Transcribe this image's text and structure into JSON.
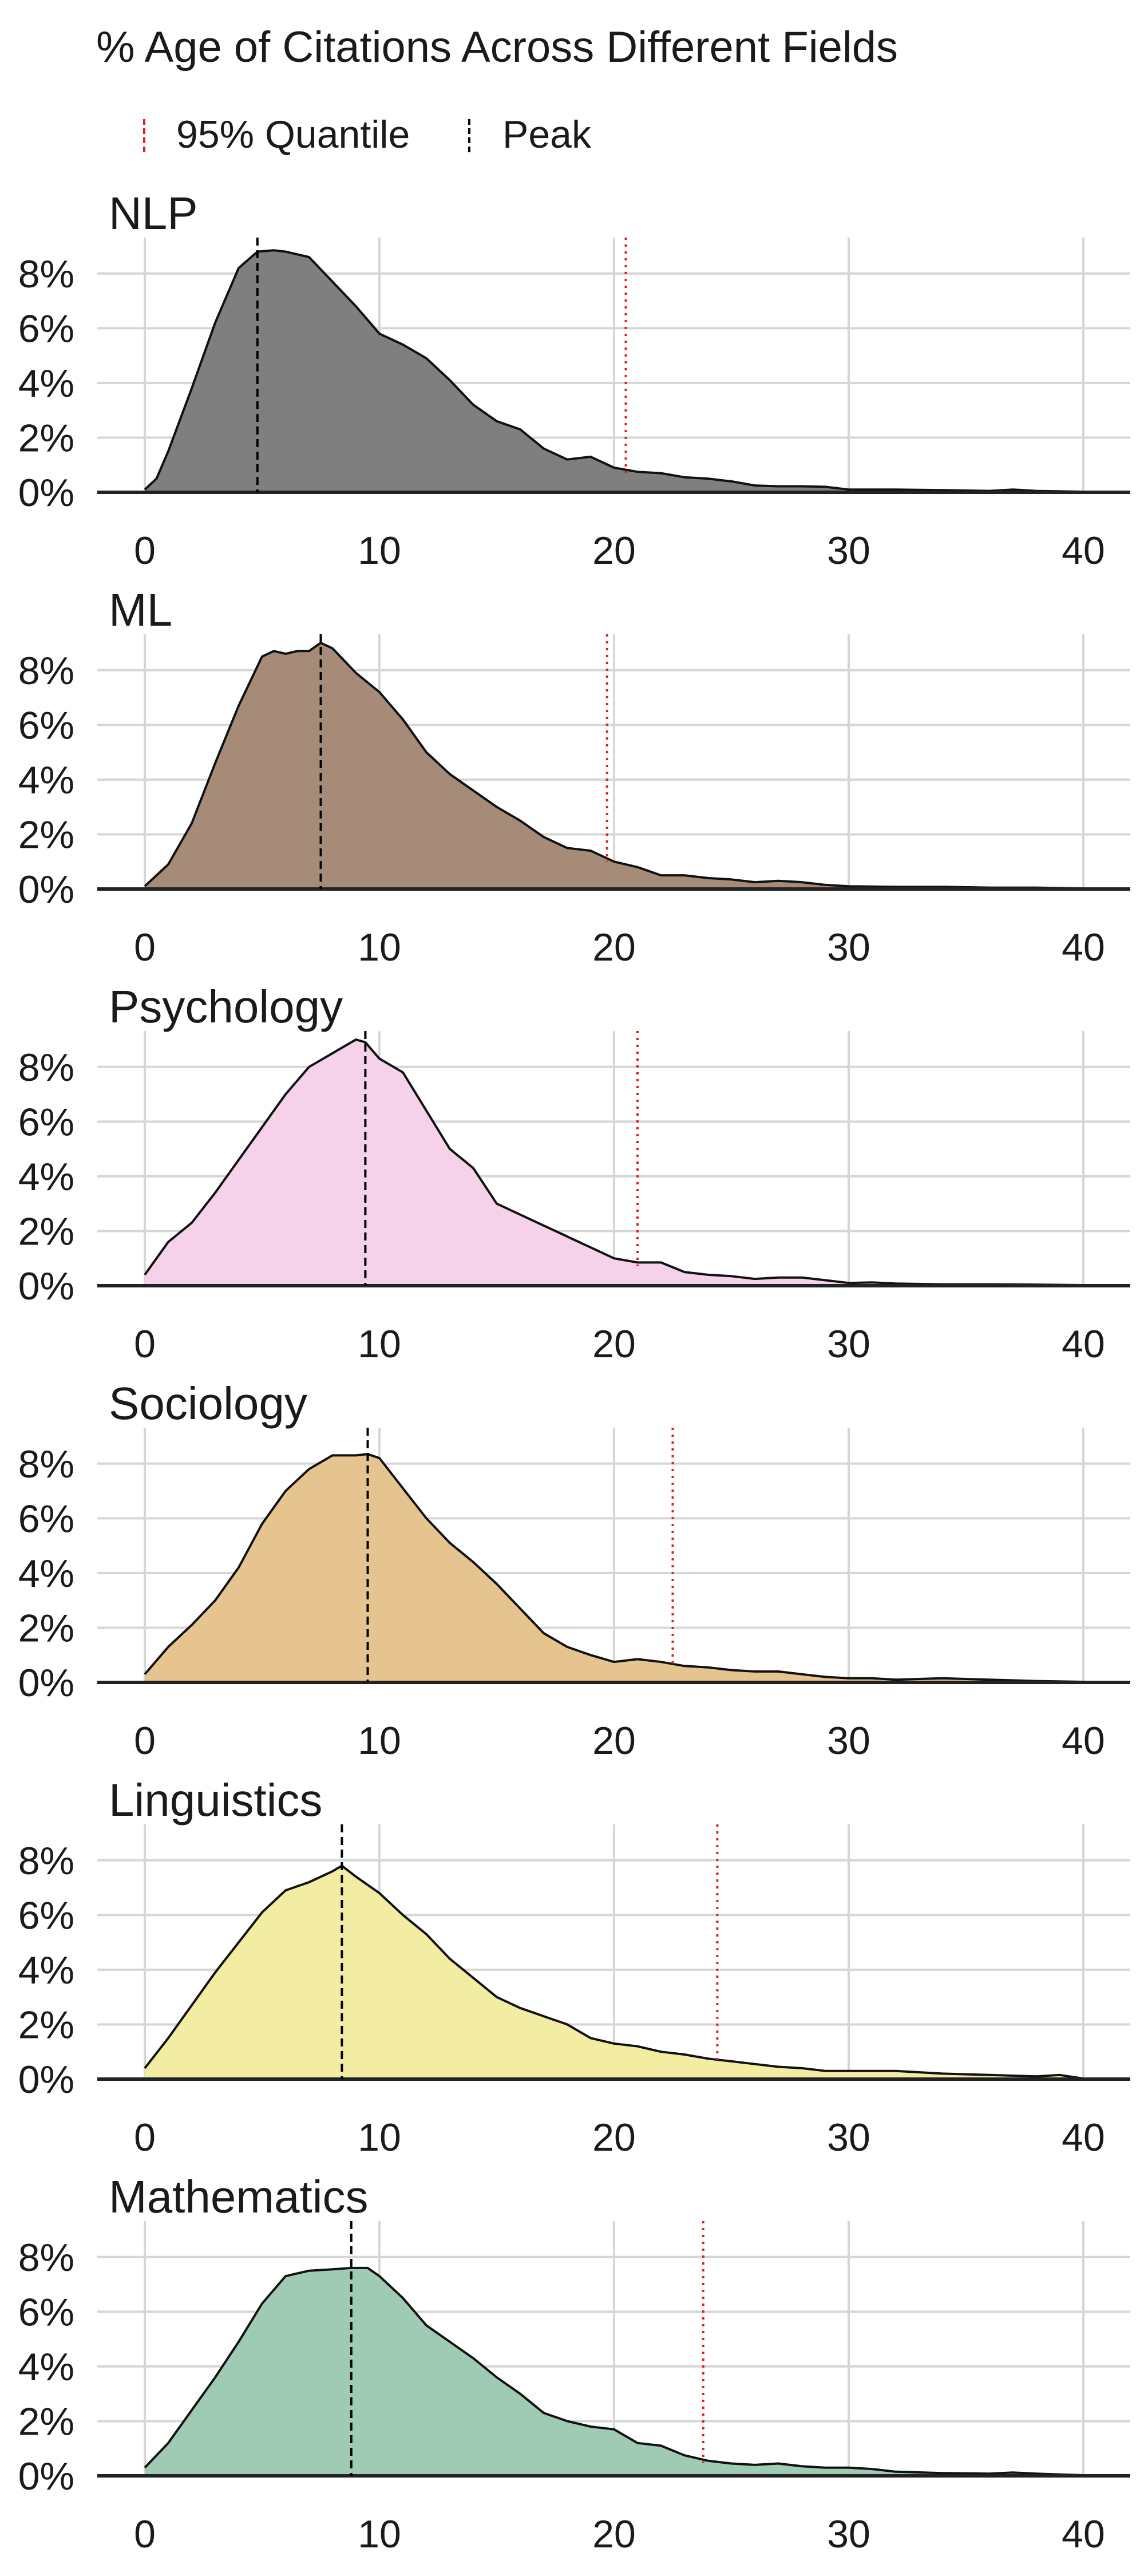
{
  "title": "% Age of Citations Across Different Fields",
  "legend": [
    {
      "label": "95% Quantile",
      "color": "#e41a1c",
      "dash": "dotted"
    },
    {
      "label": "Peak",
      "color": "#000000",
      "dash": "dashed"
    }
  ],
  "chart_data": [
    {
      "type": "area",
      "title": "NLP",
      "fill": "#7f7f7f",
      "xlim": [
        0,
        42
      ],
      "ylim": [
        0,
        9
      ],
      "xticks": [
        0,
        10,
        20,
        30,
        40
      ],
      "yticks": [
        0,
        2,
        4,
        6,
        8
      ],
      "ytick_labels": [
        "0%",
        "2%",
        "4%",
        "6%",
        "8%"
      ],
      "peak": 4.8,
      "quantile_95": 20.5,
      "x": [
        0,
        0.5,
        1,
        2,
        3,
        4,
        4.8,
        5.5,
        6,
        7,
        8,
        9,
        10,
        11,
        12,
        13,
        14,
        15,
        16,
        17,
        18,
        19,
        20,
        21,
        22,
        23,
        24,
        25,
        26,
        27,
        28,
        29,
        30,
        32,
        34,
        36,
        37,
        38,
        40
      ],
      "y": [
        0.1,
        0.5,
        1.5,
        3.8,
        6.2,
        8.2,
        8.8,
        8.85,
        8.8,
        8.6,
        7.7,
        6.8,
        5.8,
        5.4,
        4.9,
        4.1,
        3.2,
        2.6,
        2.3,
        1.6,
        1.2,
        1.3,
        0.9,
        0.75,
        0.7,
        0.55,
        0.5,
        0.4,
        0.25,
        0.22,
        0.22,
        0.2,
        0.1,
        0.1,
        0.08,
        0.05,
        0.1,
        0.05,
        0.02
      ]
    },
    {
      "type": "area",
      "title": "ML",
      "fill": "#a68b79",
      "xlim": [
        0,
        42
      ],
      "ylim": [
        0,
        9
      ],
      "xticks": [
        0,
        10,
        20,
        30,
        40
      ],
      "yticks": [
        0,
        2,
        4,
        6,
        8
      ],
      "ytick_labels": [
        "0%",
        "2%",
        "4%",
        "6%",
        "8%"
      ],
      "peak": 7.5,
      "quantile_95": 19.7,
      "x": [
        0,
        1,
        2,
        3,
        4,
        5,
        5.5,
        6,
        6.5,
        7,
        7.5,
        8,
        9,
        10,
        11,
        12,
        13,
        14,
        15,
        16,
        17,
        18,
        19,
        20,
        21,
        22,
        23,
        24,
        25,
        26,
        27,
        28,
        29,
        30,
        32,
        34,
        36,
        38,
        40
      ],
      "y": [
        0.1,
        0.9,
        2.4,
        4.6,
        6.7,
        8.5,
        8.7,
        8.6,
        8.7,
        8.7,
        9.0,
        8.8,
        7.9,
        7.2,
        6.2,
        5.0,
        4.2,
        3.6,
        3.0,
        2.5,
        1.9,
        1.5,
        1.4,
        1.0,
        0.8,
        0.5,
        0.5,
        0.4,
        0.35,
        0.25,
        0.3,
        0.25,
        0.15,
        0.1,
        0.08,
        0.08,
        0.05,
        0.05,
        0.02
      ]
    },
    {
      "type": "area",
      "title": "Psychology",
      "fill": "#f5d1ea",
      "xlim": [
        0,
        42
      ],
      "ylim": [
        0,
        9
      ],
      "xticks": [
        0,
        10,
        20,
        30,
        40
      ],
      "yticks": [
        0,
        2,
        4,
        6,
        8
      ],
      "ytick_labels": [
        "0%",
        "2%",
        "4%",
        "6%",
        "8%"
      ],
      "peak": 9.4,
      "quantile_95": 21.0,
      "x": [
        0,
        0.5,
        1,
        2,
        3,
        4,
        5,
        6,
        7,
        8,
        9,
        9.4,
        10,
        11,
        12,
        13,
        14,
        15,
        16,
        17,
        18,
        19,
        20,
        21,
        22,
        23,
        24,
        25,
        26,
        27,
        28,
        29,
        30,
        31,
        32,
        34,
        36,
        38,
        40
      ],
      "y": [
        0.4,
        1.0,
        1.6,
        2.3,
        3.4,
        4.6,
        5.8,
        7.0,
        8.0,
        8.5,
        9.0,
        8.9,
        8.3,
        7.8,
        6.4,
        5.0,
        4.3,
        3.0,
        2.6,
        2.2,
        1.8,
        1.4,
        1.0,
        0.85,
        0.85,
        0.5,
        0.4,
        0.35,
        0.25,
        0.3,
        0.3,
        0.2,
        0.1,
        0.12,
        0.08,
        0.05,
        0.05,
        0.04,
        0.02
      ]
    },
    {
      "type": "area",
      "title": "Sociology",
      "fill": "#e6c490",
      "xlim": [
        0,
        42
      ],
      "ylim": [
        0,
        9
      ],
      "xticks": [
        0,
        10,
        20,
        30,
        40
      ],
      "yticks": [
        0,
        2,
        4,
        6,
        8
      ],
      "ytick_labels": [
        "0%",
        "2%",
        "4%",
        "6%",
        "8%"
      ],
      "peak": 9.5,
      "quantile_95": 22.5,
      "x": [
        0,
        1,
        2,
        3,
        4,
        5,
        6,
        7,
        8,
        9,
        9.5,
        10,
        11,
        12,
        13,
        14,
        15,
        16,
        17,
        18,
        19,
        20,
        21,
        22,
        23,
        24,
        25,
        26,
        27,
        28,
        29,
        30,
        31,
        32,
        34,
        36,
        38,
        40
      ],
      "y": [
        0.3,
        1.3,
        2.1,
        3.0,
        4.2,
        5.8,
        7.0,
        7.8,
        8.3,
        8.3,
        8.35,
        8.2,
        7.1,
        6.0,
        5.1,
        4.4,
        3.6,
        2.7,
        1.8,
        1.3,
        1.0,
        0.75,
        0.85,
        0.75,
        0.6,
        0.55,
        0.45,
        0.4,
        0.4,
        0.3,
        0.2,
        0.15,
        0.15,
        0.1,
        0.15,
        0.1,
        0.05,
        0.02
      ]
    },
    {
      "type": "area",
      "title": "Linguistics",
      "fill": "#f3eca3",
      "xlim": [
        0,
        42
      ],
      "ylim": [
        0,
        9
      ],
      "xticks": [
        0,
        10,
        20,
        30,
        40
      ],
      "yticks": [
        0,
        2,
        4,
        6,
        8
      ],
      "ytick_labels": [
        "0%",
        "2%",
        "4%",
        "6%",
        "8%"
      ],
      "peak": 8.4,
      "quantile_95": 24.4,
      "x": [
        0,
        1,
        2,
        3,
        4,
        5,
        6,
        7,
        8,
        8.4,
        9,
        10,
        11,
        12,
        13,
        14,
        15,
        16,
        17,
        18,
        19,
        20,
        21,
        22,
        23,
        24,
        25,
        26,
        27,
        28,
        29,
        30,
        32,
        34,
        36,
        38,
        39,
        40
      ],
      "y": [
        0.4,
        1.5,
        2.7,
        3.9,
        5.0,
        6.1,
        6.9,
        7.2,
        7.6,
        7.8,
        7.4,
        6.8,
        6.0,
        5.3,
        4.4,
        3.7,
        3.0,
        2.6,
        2.3,
        2.0,
        1.5,
        1.3,
        1.2,
        1.0,
        0.9,
        0.75,
        0.65,
        0.55,
        0.45,
        0.4,
        0.3,
        0.3,
        0.3,
        0.2,
        0.15,
        0.1,
        0.15,
        0.02
      ]
    },
    {
      "type": "area",
      "title": "Mathematics",
      "fill": "#9fcbb5",
      "xlim": [
        0,
        42
      ],
      "ylim": [
        0,
        9
      ],
      "xticks": [
        0,
        10,
        20,
        30,
        40
      ],
      "yticks": [
        0,
        2,
        4,
        6,
        8
      ],
      "ytick_labels": [
        "0%",
        "2%",
        "4%",
        "6%",
        "8%"
      ],
      "peak": 8.8,
      "quantile_95": 23.8,
      "x": [
        0,
        1,
        2,
        3,
        4,
        5,
        6,
        7,
        8,
        8.8,
        9.5,
        10,
        11,
        12,
        13,
        14,
        15,
        16,
        17,
        18,
        19,
        20,
        21,
        22,
        23,
        24,
        25,
        26,
        27,
        28,
        29,
        30,
        31,
        32,
        34,
        36,
        37,
        38,
        40
      ],
      "y": [
        0.3,
        1.2,
        2.4,
        3.6,
        4.9,
        6.3,
        7.3,
        7.5,
        7.55,
        7.6,
        7.6,
        7.3,
        6.5,
        5.5,
        4.9,
        4.3,
        3.6,
        3.0,
        2.3,
        2.0,
        1.8,
        1.7,
        1.2,
        1.1,
        0.75,
        0.55,
        0.45,
        0.4,
        0.45,
        0.35,
        0.3,
        0.3,
        0.25,
        0.15,
        0.1,
        0.08,
        0.12,
        0.08,
        0.02
      ]
    }
  ]
}
